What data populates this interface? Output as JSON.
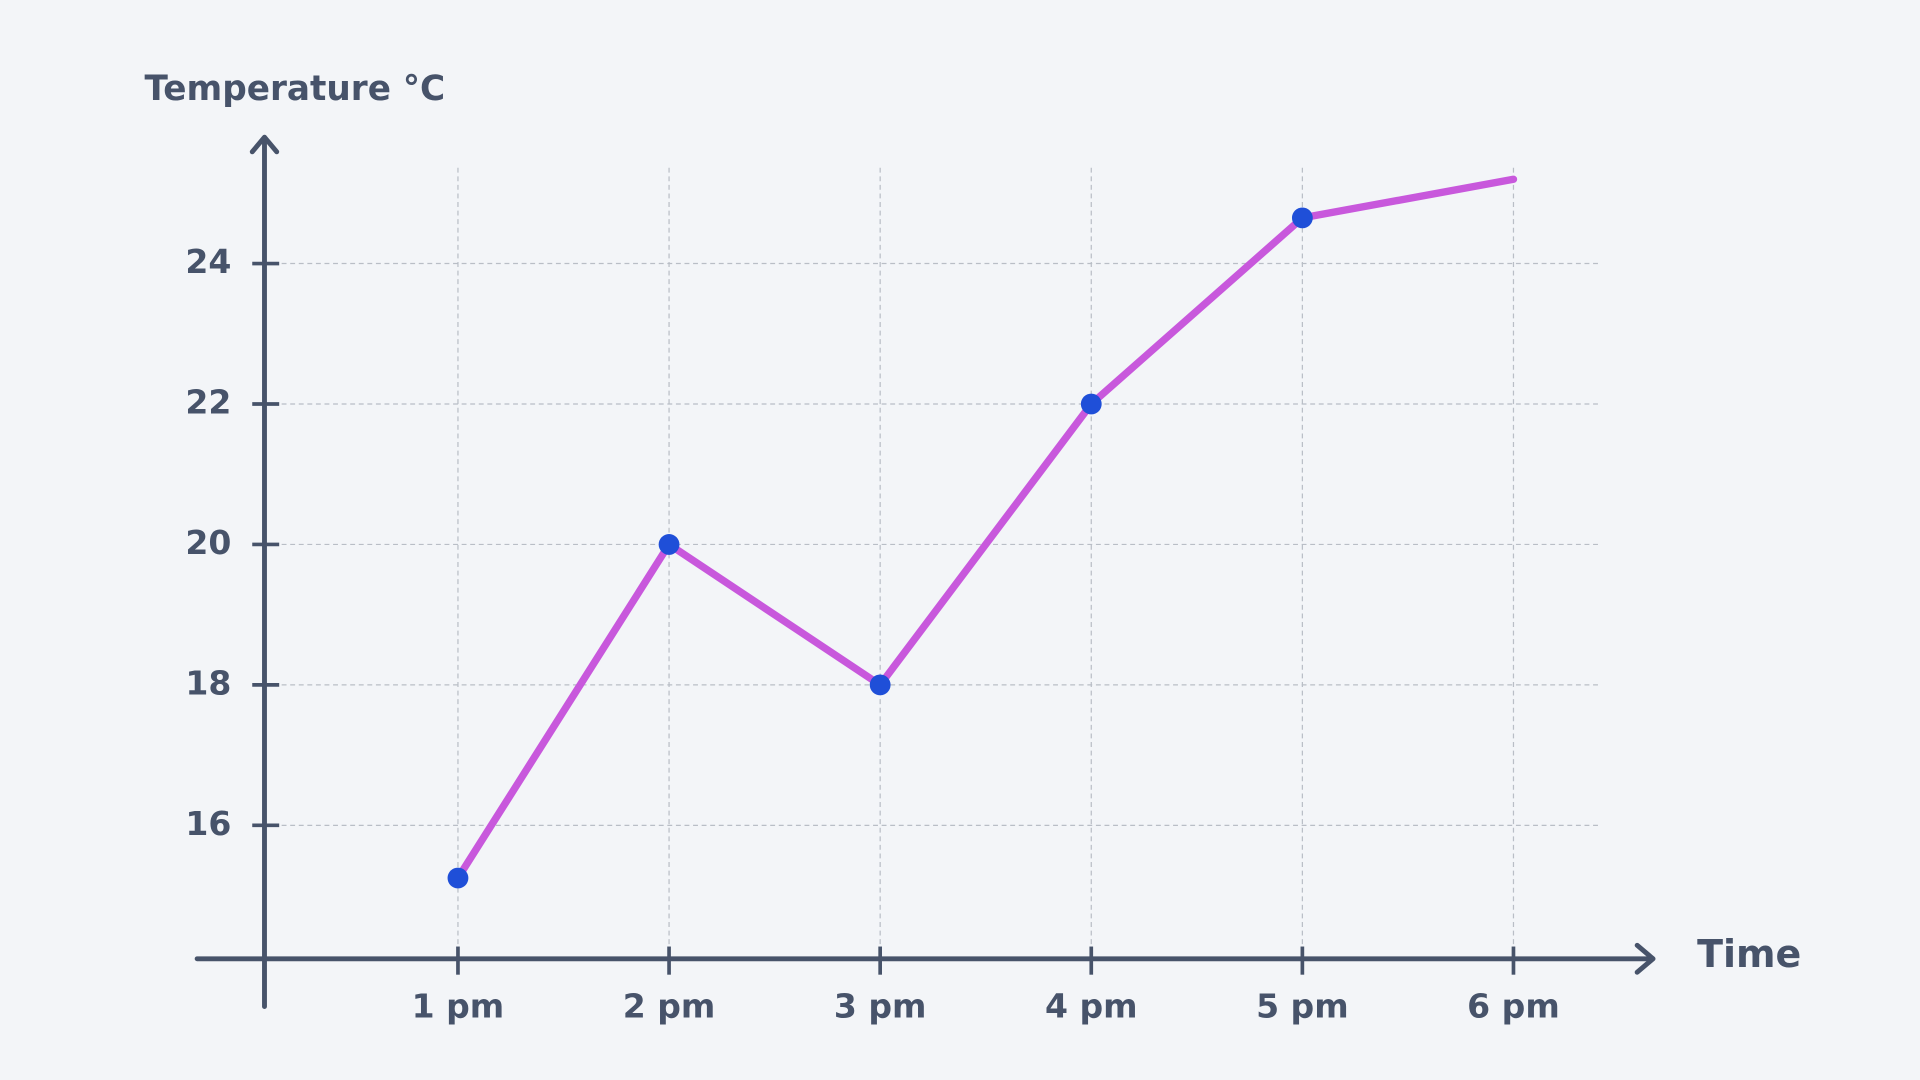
{
  "chart_data": {
    "type": "line",
    "x_label": "Time",
    "y_label": "Temperature °C",
    "categories": [
      "1 pm",
      "2 pm",
      "3 pm",
      "4 pm",
      "5 pm",
      "6 pm"
    ],
    "series": [
      {
        "name": "Temperature",
        "color": "#c858dc",
        "marker_color": "#1f4fd8",
        "values": [
          15.25,
          20,
          18,
          22,
          24.65,
          25.2
        ]
      }
    ],
    "ylim": [
      14.1,
      25.8
    ],
    "yticks": [
      16,
      18,
      20,
      22,
      24
    ],
    "grid": true
  }
}
